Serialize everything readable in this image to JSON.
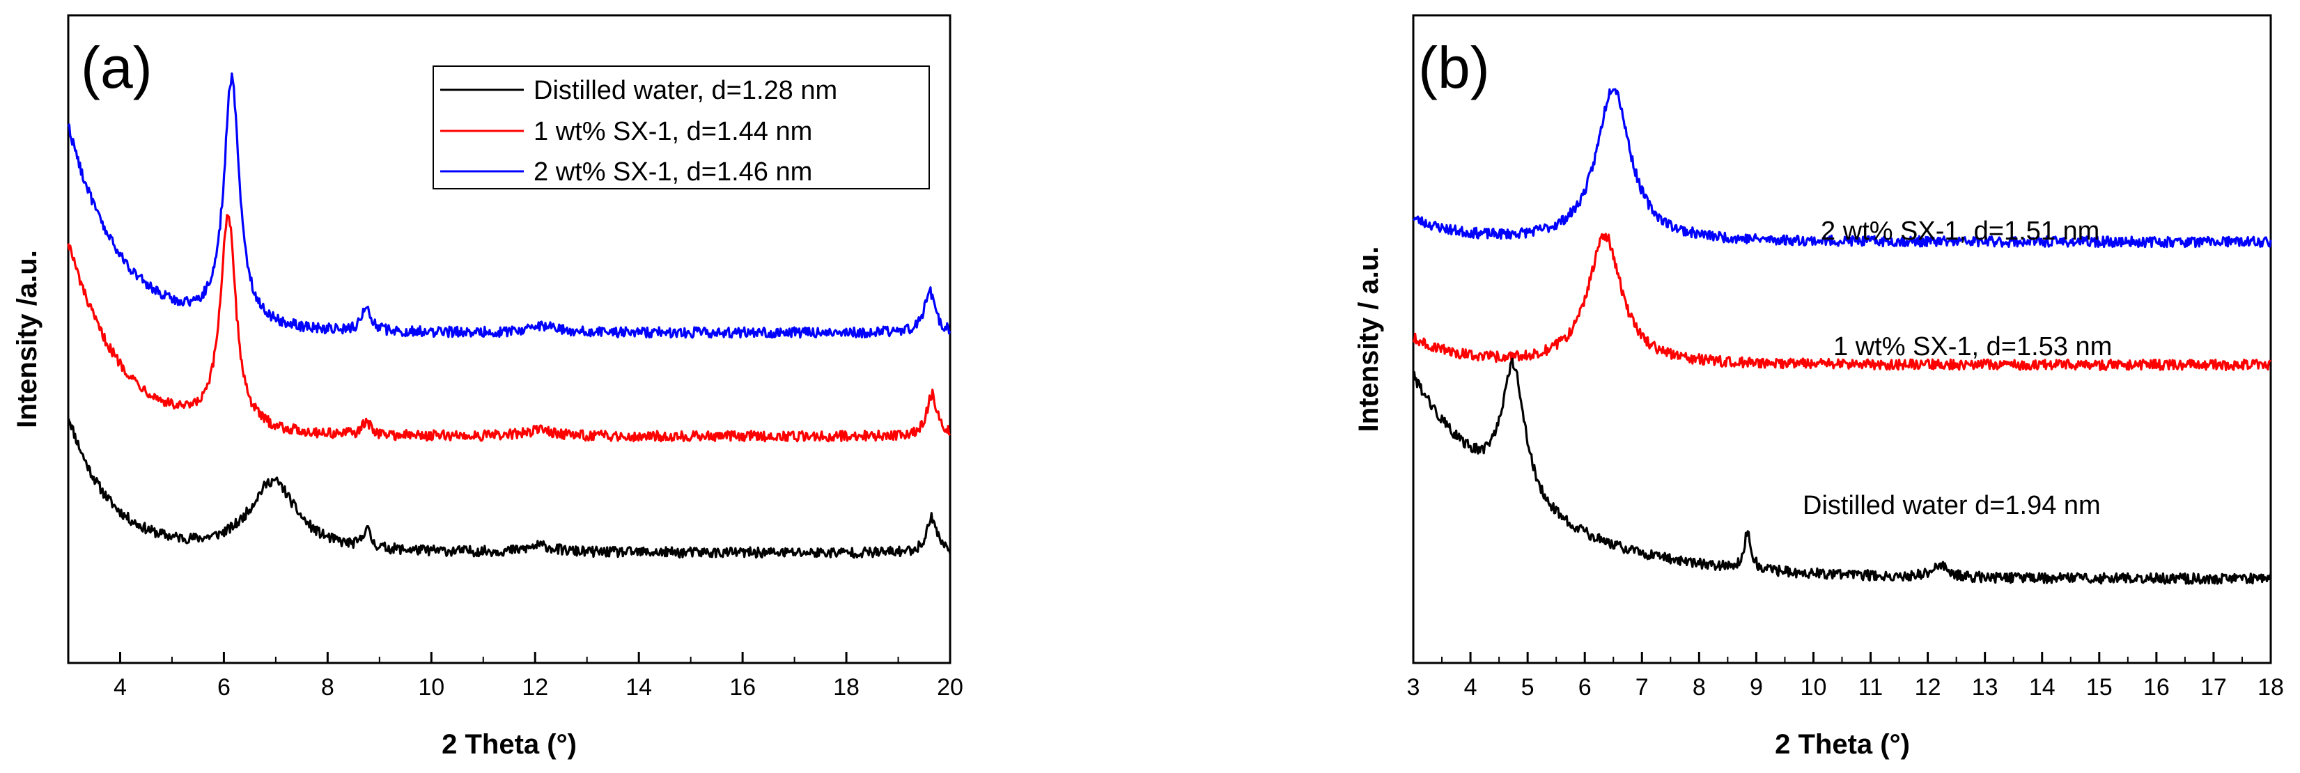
{
  "chart_data": [
    {
      "type": "line",
      "panel_label": "(a)",
      "xlabel": "2 Theta (°)",
      "ylabel": "Intensity /a.u.",
      "xlim": [
        3,
        20
      ],
      "ylim": [
        0,
        100
      ],
      "xticks": [
        4,
        6,
        8,
        10,
        12,
        14,
        16,
        18,
        20
      ],
      "yticks_shown": false,
      "legend_position": "top-right",
      "legend": [
        "Distilled water, d=1.28 nm",
        "1 wt% SX-1, d=1.44 nm",
        "2 wt% SX-1, d=1.46 nm"
      ],
      "series": [
        {
          "name": "Distilled water, d=1.28 nm",
          "color": "#000000",
          "baseline": 17,
          "start_bump": [
            3.0,
            38,
            0.35
          ],
          "decay": 0.8,
          "peaks": [
            [
              6.95,
              11,
              0.55
            ],
            [
              8.75,
              3,
              0.08
            ],
            [
              12.1,
              1,
              0.3
            ],
            [
              19.65,
              5.5,
              0.12
            ]
          ],
          "end": [
            20.0,
            21
          ]
        },
        {
          "name": "1 wt% SX-1, d=1.44 nm",
          "color": "#ff0000",
          "baseline": 35,
          "start_bump": [
            3.0,
            65,
            0.4
          ],
          "decay": 1.0,
          "peaks": [
            [
              6.08,
              33,
              0.18
            ],
            [
              8.75,
              2,
              0.1
            ],
            [
              12.1,
              1,
              0.3
            ],
            [
              19.65,
              6.5,
              0.12
            ]
          ],
          "end": [
            20.0,
            38
          ]
        },
        {
          "name": "2 wt% SX-1, d=1.46 nm",
          "color": "#0000ff",
          "baseline": 51,
          "start_bump": [
            3.0,
            83,
            0.4
          ],
          "decay": 1.0,
          "peaks": [
            [
              6.15,
              38,
              0.18
            ],
            [
              8.75,
              4,
              0.1
            ],
            [
              12.2,
              1,
              0.3
            ],
            [
              19.6,
              6.5,
              0.12
            ]
          ],
          "end": [
            20.0,
            52
          ]
        }
      ]
    },
    {
      "type": "line",
      "panel_label": "(b)",
      "xlabel": "2 Theta (°)",
      "ylabel": "Intensity / a.u.",
      "xlim": [
        3,
        18
      ],
      "ylim": [
        0,
        100
      ],
      "xticks": [
        3,
        4,
        5,
        6,
        7,
        8,
        9,
        10,
        11,
        12,
        13,
        14,
        15,
        16,
        17,
        18
      ],
      "yticks_shown": false,
      "annotations": [
        {
          "text": "2 wt% SX-1,  d=1.51 nm",
          "x": 9.9,
          "y": 69
        },
        {
          "text": "1 wt% SX-1, d=1.53 nm",
          "x": 10.1,
          "y": 51
        },
        {
          "text": "Distilled water d=1.94 nm",
          "x": 9.8,
          "y": 24
        }
      ],
      "series": [
        {
          "name": "2 wt% SX-1,  d=1.51 nm",
          "color": "#0000ff",
          "baseline": 65,
          "start_bump": [
            3.0,
            68.5,
            0.6
          ],
          "decay": 0.8,
          "peaks": [
            [
              6.5,
              24,
              0.35
            ]
          ],
          "end": [
            18.0,
            65
          ]
        },
        {
          "name": "1 wt% SX-1, d=1.53 nm",
          "color": "#ff0000",
          "baseline": 46,
          "start_bump": [
            3.0,
            50,
            0.6
          ],
          "decay": 0.8,
          "peaks": [
            [
              6.35,
              20,
              0.35
            ]
          ],
          "end": [
            18.0,
            46
          ]
        },
        {
          "name": "Distilled water d=1.94 nm",
          "color": "#000000",
          "baseline": 13,
          "start_bump": [
            3.0,
            44,
            0.3
          ],
          "decay": 1.9,
          "peaks": [
            [
              4.75,
              21,
              0.25
            ],
            [
              8.85,
              6,
              0.07
            ],
            [
              12.2,
              2,
              0.15
            ]
          ],
          "end": [
            18.0,
            14
          ]
        }
      ]
    }
  ]
}
